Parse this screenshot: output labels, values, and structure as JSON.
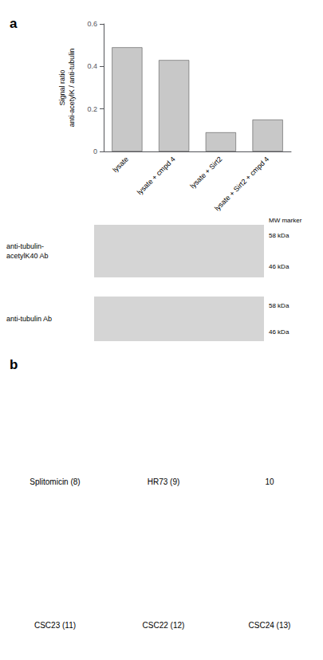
{
  "chart_data": {
    "type": "bar",
    "categories": [
      "lysate",
      "lysate + cmpd 4",
      "lysate + Sirt2",
      "lysate + Sirt2 + cmpd 4"
    ],
    "values": [
      0.49,
      0.43,
      0.09,
      0.15
    ],
    "color": "#c8c8c8",
    "ylabel": "Signal ratio\nanti-acetylK / anti-tubulin",
    "ylim": [
      0,
      0.6
    ],
    "yticks": [
      0,
      0.2,
      0.4,
      0.6
    ],
    "grid": false,
    "annotations": [
      "a",
      "anti-tubulin-\nacetylK40 Ab",
      "anti-tubulin Ab",
      "MW marker",
      "58 kDa",
      "46 kDa",
      "b",
      "Splitomicin (8)",
      "HR73 (9)",
      "10",
      "CSC23 (11)",
      "CSC22 (12)",
      "CSC24 (13)"
    ]
  }
}
